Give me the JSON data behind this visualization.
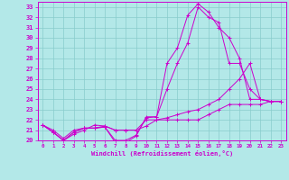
{
  "bg_color": "#b3e8e8",
  "line_color": "#cc00cc",
  "grid_color": "#88cccc",
  "spine_color": "#cc00cc",
  "xlim": [
    -0.5,
    23.5
  ],
  "ylim": [
    20,
    33.5
  ],
  "yticks": [
    20,
    21,
    22,
    23,
    24,
    25,
    26,
    27,
    28,
    29,
    30,
    31,
    32,
    33
  ],
  "xticks": [
    0,
    1,
    2,
    3,
    4,
    5,
    6,
    7,
    8,
    9,
    10,
    11,
    12,
    13,
    14,
    15,
    16,
    17,
    18,
    19,
    20,
    21,
    22,
    23
  ],
  "xlabel": "Windchill (Refroidissement éolien,°C)",
  "series": [
    {
      "x": [
        0,
        1,
        2,
        3,
        4,
        5,
        6,
        7,
        8,
        9,
        10,
        11,
        12,
        13,
        14,
        15,
        16,
        17,
        18,
        19,
        20,
        21,
        22,
        23
      ],
      "y": [
        21.5,
        20.8,
        20.0,
        20.8,
        21.2,
        21.2,
        21.3,
        20.0,
        20.0,
        20.5,
        22.2,
        22.3,
        27.5,
        29.0,
        32.2,
        33.3,
        32.5,
        31.0,
        30.0,
        28.0,
        24.0,
        24.0,
        23.8,
        23.8
      ]
    },
    {
      "x": [
        0,
        1,
        2,
        3,
        4,
        5,
        6,
        7,
        8,
        9,
        10,
        11,
        12,
        13,
        14,
        15,
        16,
        17,
        18,
        19,
        20,
        21,
        22,
        23
      ],
      "y": [
        21.5,
        20.8,
        20.0,
        20.6,
        21.0,
        21.5,
        21.4,
        21.0,
        21.0,
        21.0,
        22.0,
        22.0,
        22.0,
        22.0,
        22.0,
        22.0,
        22.5,
        23.0,
        23.5,
        23.5,
        23.5,
        23.5,
        23.8,
        23.8
      ]
    },
    {
      "x": [
        0,
        1,
        2,
        3,
        4,
        5,
        6,
        7,
        8,
        9,
        10,
        11,
        12,
        13,
        14,
        15,
        16,
        17,
        18,
        19,
        20,
        21,
        22,
        23
      ],
      "y": [
        21.5,
        20.8,
        20.0,
        20.8,
        21.2,
        21.2,
        21.3,
        19.8,
        19.8,
        20.4,
        22.3,
        22.3,
        25.0,
        27.5,
        29.5,
        33.0,
        32.0,
        31.5,
        27.5,
        27.5,
        25.0,
        24.0,
        23.8,
        23.8
      ]
    },
    {
      "x": [
        0,
        1,
        2,
        3,
        4,
        5,
        6,
        7,
        8,
        9,
        10,
        11,
        12,
        13,
        14,
        15,
        16,
        17,
        18,
        19,
        20,
        21,
        22,
        23
      ],
      "y": [
        21.5,
        21.0,
        20.2,
        21.0,
        21.2,
        21.2,
        21.4,
        21.0,
        21.0,
        21.0,
        21.4,
        22.0,
        22.2,
        22.5,
        22.8,
        23.0,
        23.5,
        24.0,
        25.0,
        26.0,
        27.5,
        24.0,
        23.8,
        23.8
      ]
    }
  ]
}
